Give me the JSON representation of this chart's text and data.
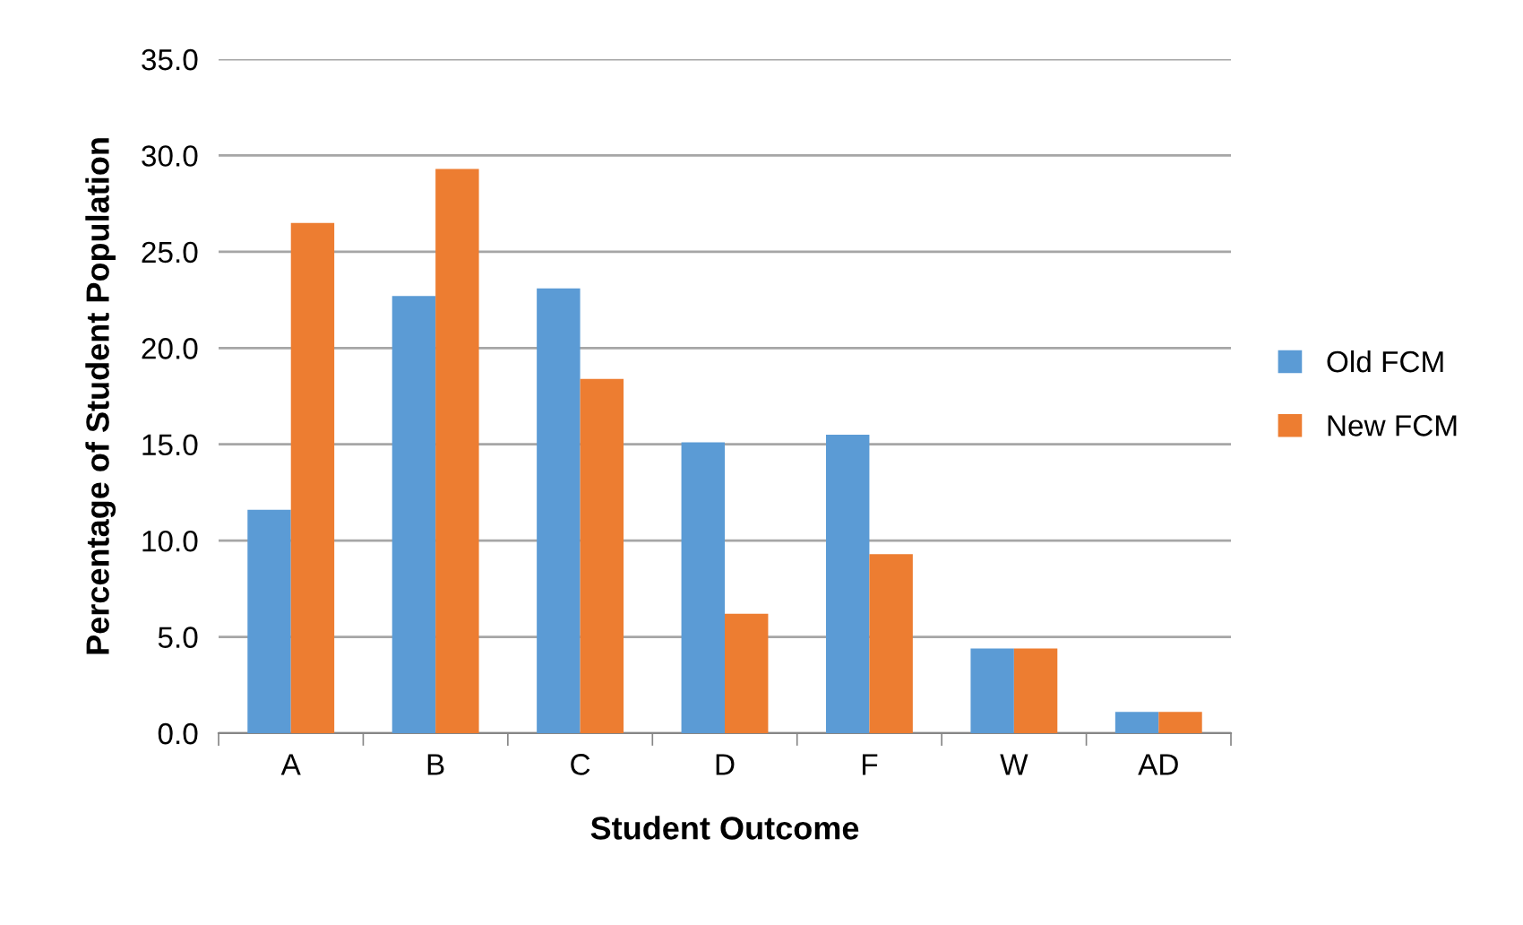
{
  "chart_data": {
    "type": "bar",
    "xlabel": "Student Outcome",
    "ylabel": "Percentage of Student Population",
    "categories": [
      "A",
      "B",
      "C",
      "D",
      "F",
      "W",
      "AD"
    ],
    "series": [
      {
        "name": "Old FCM",
        "color": "#5b9bd5",
        "values": [
          11.6,
          22.7,
          23.1,
          15.1,
          15.5,
          4.4,
          1.1
        ]
      },
      {
        "name": "New FCM",
        "color": "#ed7d31",
        "values": [
          26.5,
          29.3,
          18.4,
          6.2,
          9.3,
          4.4,
          1.1
        ]
      }
    ],
    "ylim": [
      0,
      35
    ],
    "yticks": [
      {
        "value": 0,
        "label": "0.0"
      },
      {
        "value": 5,
        "label": "5.0"
      },
      {
        "value": 10,
        "label": "10.0"
      },
      {
        "value": 15,
        "label": "15.0"
      },
      {
        "value": 20,
        "label": "20.0"
      },
      {
        "value": 25,
        "label": "25.0"
      },
      {
        "value": 30,
        "label": "30.0"
      },
      {
        "value": 35,
        "label": "35.0"
      }
    ],
    "grid": "y",
    "legend": "right"
  }
}
